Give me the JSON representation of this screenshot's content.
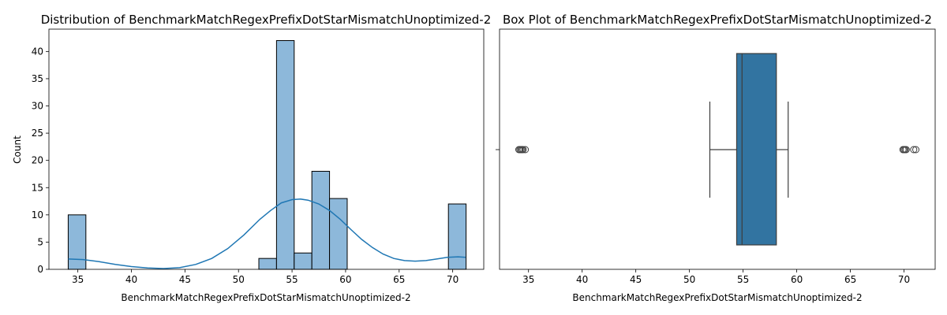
{
  "chart_data": [
    {
      "type": "histogram",
      "title": "Distribution of BenchmarkMatchRegexPrefixDotStarMismatchUnoptimized-2",
      "xlabel": "BenchmarkMatchRegexPrefixDotStarMismatchUnoptimized-2",
      "ylabel": "Count",
      "xlim": [
        32.3,
        72.9
      ],
      "ylim": [
        0,
        44.1
      ],
      "xticks": [
        35,
        40,
        45,
        50,
        55,
        60,
        65,
        70
      ],
      "yticks": [
        0,
        5,
        10,
        15,
        20,
        25,
        30,
        35,
        40
      ],
      "bins": [
        {
          "x0": 34.1,
          "x1": 35.75,
          "count": 10
        },
        {
          "x0": 51.9,
          "x1": 53.55,
          "count": 2
        },
        {
          "x0": 53.55,
          "x1": 55.2,
          "count": 42
        },
        {
          "x0": 55.2,
          "x1": 56.85,
          "count": 3
        },
        {
          "x0": 56.85,
          "x1": 58.5,
          "count": 18
        },
        {
          "x0": 58.5,
          "x1": 60.15,
          "count": 13
        },
        {
          "x0": 69.6,
          "x1": 71.25,
          "count": 12
        }
      ],
      "kde": {
        "x": [
          34.1,
          35.5,
          37,
          38.5,
          40,
          41.5,
          43,
          44.5,
          46,
          47.5,
          49,
          50.5,
          52,
          53,
          54,
          55,
          55.8,
          56.5,
          57.5,
          58.5,
          59.5,
          60.5,
          61.5,
          62.5,
          63.5,
          64.5,
          65.5,
          66.5,
          67.5,
          68.5,
          69.5,
          70.5,
          71.2
        ],
        "y": [
          1.9,
          1.8,
          1.4,
          0.9,
          0.5,
          0.25,
          0.15,
          0.3,
          0.9,
          2.0,
          3.8,
          6.3,
          9.2,
          10.8,
          12.2,
          12.8,
          12.9,
          12.7,
          12.0,
          10.8,
          9.2,
          7.3,
          5.5,
          4.0,
          2.8,
          2.0,
          1.6,
          1.5,
          1.6,
          1.9,
          2.2,
          2.3,
          2.2
        ]
      },
      "bar_color": "#8db8da",
      "line_color": "#1f77b4",
      "grid": false
    },
    {
      "type": "box",
      "title": "Box Plot of BenchmarkMatchRegexPrefixDotStarMismatchUnoptimized-2",
      "xlabel": "BenchmarkMatchRegexPrefixDotStarMismatchUnoptimized-2",
      "xlim": [
        32.3,
        72.9
      ],
      "xticks": [
        35,
        40,
        45,
        50,
        55,
        60,
        65,
        70
      ],
      "whisker_low": 51.9,
      "q1": 54.4,
      "median": 54.9,
      "q3": 58.1,
      "whisker_high": 59.2,
      "outliers": [
        34.1,
        34.2,
        34.3,
        34.4,
        34.5,
        34.7,
        69.9,
        70.0,
        70.1,
        70.2,
        70.9,
        71.1
      ],
      "box_color": "#3274a1",
      "grid": false
    }
  ]
}
